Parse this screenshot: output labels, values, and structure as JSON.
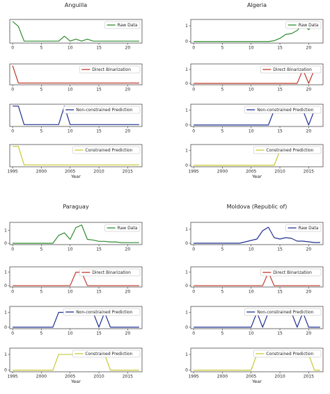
{
  "chart_data": [
    {
      "type": "line",
      "title": "Anguilla",
      "panels": [
        {
          "legend": "Raw Data",
          "color": "#2e8b2e",
          "x": [
            0,
            1,
            2,
            3,
            4,
            5,
            6,
            7,
            8,
            9,
            10,
            11,
            12,
            13,
            14,
            15,
            16,
            17,
            18,
            19,
            20,
            21,
            22
          ],
          "y": [
            1.0,
            0.75,
            0.0,
            0.0,
            0.0,
            0.0,
            0.0,
            0.0,
            0.0,
            0.25,
            0.0,
            0.1,
            0.0,
            0.1,
            0.0,
            0.0,
            0.0,
            0.0,
            0.0,
            0.0,
            0.0,
            0.0,
            0.0
          ],
          "xticks": [
            0,
            5,
            10,
            15,
            20
          ],
          "yticks": [],
          "xlim": [
            -0.5,
            22.5
          ],
          "ylim": [
            -0.1,
            1.1
          ]
        },
        {
          "legend": "Direct Binarization",
          "color": "#c0392b",
          "x": [
            0,
            1,
            2,
            3,
            4,
            5,
            6,
            7,
            8,
            9,
            10,
            11,
            12,
            13,
            14,
            15,
            16,
            17,
            18,
            19,
            20,
            21,
            22
          ],
          "y": [
            1,
            0,
            0,
            0,
            0,
            0,
            0,
            0,
            0,
            0,
            0,
            0,
            0,
            0,
            0,
            0,
            0,
            0,
            0,
            0,
            0,
            0,
            0
          ],
          "xticks": [
            0,
            5,
            10,
            15,
            20
          ],
          "yticks": [],
          "xlim": [
            -0.5,
            22.5
          ],
          "ylim": [
            -0.1,
            1.1
          ]
        },
        {
          "legend": "Non-constrained Prediction",
          "color": "#1f2f8f",
          "x": [
            0,
            1,
            2,
            3,
            4,
            5,
            6,
            7,
            8,
            9,
            10,
            11,
            12,
            13,
            14,
            15,
            16,
            17,
            18,
            19,
            20,
            21,
            22
          ],
          "y": [
            1,
            1,
            0,
            0,
            0,
            0,
            0,
            0,
            0,
            1,
            0,
            0,
            0,
            0,
            0,
            0,
            0,
            0,
            0,
            0,
            0,
            0,
            0
          ],
          "xticks": [
            0,
            5,
            10,
            15,
            20
          ],
          "yticks": [],
          "xlim": [
            -0.5,
            22.5
          ],
          "ylim": [
            -0.1,
            1.1
          ]
        },
        {
          "legend": "Constrained Prediction",
          "color": "#c8c832",
          "x": [
            1995,
            1996,
            1997,
            1998,
            1999,
            2000,
            2001,
            2002,
            2003,
            2004,
            2005,
            2006,
            2007,
            2008,
            2009,
            2010,
            2011,
            2012,
            2013,
            2014,
            2015,
            2016,
            2017
          ],
          "y": [
            1,
            1,
            0,
            0,
            0,
            0,
            0,
            0,
            0,
            0,
            0,
            0,
            0,
            0,
            0,
            0,
            0,
            0,
            0,
            0,
            0,
            0,
            0
          ],
          "xticks": [
            1995,
            2000,
            2005,
            2010,
            2015
          ],
          "yticks": [],
          "xlim": [
            1994.5,
            2017.5
          ],
          "ylim": [
            -0.1,
            1.1
          ],
          "xlabel": "Year"
        }
      ]
    },
    {
      "type": "line",
      "title": "Algeria",
      "panels": [
        {
          "legend": "Raw Data",
          "color": "#2e8b2e",
          "x": [
            0,
            1,
            2,
            3,
            4,
            5,
            6,
            7,
            8,
            9,
            10,
            11,
            12,
            13,
            14,
            15,
            16,
            17,
            18,
            19,
            20,
            21,
            22
          ],
          "y": [
            0,
            0,
            0,
            0,
            0,
            0,
            0,
            0,
            0,
            0,
            0,
            0,
            0,
            0,
            0.05,
            0.2,
            0.45,
            0.5,
            0.7,
            1.1,
            0.75,
            1.2,
            0.95
          ],
          "xticks": [
            0,
            5,
            10,
            15,
            20
          ],
          "yticks": [
            0,
            1
          ],
          "xlim": [
            -0.5,
            22.5
          ],
          "ylim": [
            -0.1,
            1.4
          ]
        },
        {
          "legend": "Direct Binarization",
          "color": "#c0392b",
          "x": [
            0,
            1,
            2,
            3,
            4,
            5,
            6,
            7,
            8,
            9,
            10,
            11,
            12,
            13,
            14,
            15,
            16,
            17,
            18,
            19,
            20,
            21,
            22
          ],
          "y": [
            0,
            0,
            0,
            0,
            0,
            0,
            0,
            0,
            0,
            0,
            0,
            0,
            0,
            0,
            0,
            0,
            0,
            0,
            0,
            1,
            0,
            1,
            1
          ],
          "xticks": [
            0,
            5,
            10,
            15,
            20
          ],
          "yticks": [
            0,
            1
          ],
          "xlim": [
            -0.5,
            22.5
          ],
          "ylim": [
            -0.1,
            1.4
          ]
        },
        {
          "legend": "Non-constrained Prediction",
          "color": "#1f2f8f",
          "x": [
            0,
            1,
            2,
            3,
            4,
            5,
            6,
            7,
            8,
            9,
            10,
            11,
            12,
            13,
            14,
            15,
            16,
            17,
            18,
            19,
            20,
            21,
            22
          ],
          "y": [
            0,
            0,
            0,
            0,
            0,
            0,
            0,
            0,
            0,
            0,
            0,
            0,
            0,
            0,
            1,
            1,
            1,
            1,
            1,
            1,
            0,
            1,
            1
          ],
          "xticks": [
            0,
            5,
            10,
            15,
            20
          ],
          "yticks": [
            0,
            1
          ],
          "xlim": [
            -0.5,
            22.5
          ],
          "ylim": [
            -0.1,
            1.4
          ]
        },
        {
          "legend": "Constrained Prediction",
          "color": "#c8c832",
          "x": [
            1995,
            1996,
            1997,
            1998,
            1999,
            2000,
            2001,
            2002,
            2003,
            2004,
            2005,
            2006,
            2007,
            2008,
            2009,
            2010,
            2011,
            2012,
            2013,
            2014,
            2015,
            2016,
            2017
          ],
          "y": [
            0,
            0,
            0,
            0,
            0,
            0,
            0,
            0,
            0,
            0,
            0,
            0,
            0,
            0,
            0,
            1,
            1,
            1,
            1,
            1,
            1,
            1,
            1
          ],
          "xticks": [
            1995,
            2000,
            2005,
            2010,
            2015
          ],
          "yticks": [
            0,
            1
          ],
          "xlim": [
            1994.5,
            2017.5
          ],
          "ylim": [
            -0.1,
            1.4
          ],
          "xlabel": "Year"
        }
      ]
    },
    {
      "type": "line",
      "title": "Paraguay",
      "panels": [
        {
          "legend": "Raw Data",
          "color": "#2e8b2e",
          "x": [
            0,
            1,
            2,
            3,
            4,
            5,
            6,
            7,
            8,
            9,
            10,
            11,
            12,
            13,
            14,
            15,
            16,
            17,
            18,
            19,
            20,
            21,
            22
          ],
          "y": [
            0,
            0,
            0,
            0,
            0,
            0,
            0,
            0,
            0.6,
            0.8,
            0.3,
            1.2,
            1.4,
            0.3,
            0.25,
            0.15,
            0.15,
            0.1,
            0.1,
            0.05,
            0.05,
            0.05,
            0.05
          ],
          "xticks": [
            0,
            5,
            10,
            15,
            20
          ],
          "yticks": [
            0,
            1
          ],
          "xlim": [
            -0.5,
            22.5
          ],
          "ylim": [
            -0.1,
            1.6
          ]
        },
        {
          "legend": "Direct Binarization",
          "color": "#c0392b",
          "x": [
            0,
            1,
            2,
            3,
            4,
            5,
            6,
            7,
            8,
            9,
            10,
            11,
            12,
            13,
            14,
            15,
            16,
            17,
            18,
            19,
            20,
            21,
            22
          ],
          "y": [
            0,
            0,
            0,
            0,
            0,
            0,
            0,
            0,
            0,
            0,
            0,
            1,
            1,
            0,
            0,
            0,
            0,
            0,
            0,
            0,
            0,
            0,
            0
          ],
          "xticks": [
            0,
            5,
            10,
            15,
            20
          ],
          "yticks": [
            0,
            1
          ],
          "xlim": [
            -0.5,
            22.5
          ],
          "ylim": [
            -0.1,
            1.4
          ]
        },
        {
          "legend": "Non-constrained Prediction",
          "color": "#1f2f8f",
          "x": [
            0,
            1,
            2,
            3,
            4,
            5,
            6,
            7,
            8,
            9,
            10,
            11,
            12,
            13,
            14,
            15,
            16,
            17,
            18,
            19,
            20,
            21,
            22
          ],
          "y": [
            0,
            0,
            0,
            0,
            0,
            0,
            0,
            0,
            1,
            1,
            1,
            1,
            1,
            1,
            1,
            0,
            1,
            0,
            0,
            0,
            0,
            0,
            0
          ],
          "xticks": [
            0,
            5,
            10,
            15,
            20
          ],
          "yticks": [
            0,
            1
          ],
          "xlim": [
            -0.5,
            22.5
          ],
          "ylim": [
            -0.1,
            1.4
          ]
        },
        {
          "legend": "Constrained Prediction",
          "color": "#c8c832",
          "x": [
            1995,
            1996,
            1997,
            1998,
            1999,
            2000,
            2001,
            2002,
            2003,
            2004,
            2005,
            2006,
            2007,
            2008,
            2009,
            2010,
            2011,
            2012,
            2013,
            2014,
            2015,
            2016,
            2017
          ],
          "y": [
            0,
            0,
            0,
            0,
            0,
            0,
            0,
            0,
            1,
            1,
            1,
            1,
            1,
            1,
            1,
            1,
            1,
            0,
            0,
            0,
            0,
            0,
            0
          ],
          "xticks": [
            1995,
            2000,
            2005,
            2010,
            2015
          ],
          "yticks": [
            0,
            1
          ],
          "xlim": [
            1994.5,
            2017.5
          ],
          "ylim": [
            -0.1,
            1.4
          ],
          "xlabel": "Year"
        }
      ]
    },
    {
      "type": "line",
      "title": "Moldova (Republic of)",
      "panels": [
        {
          "legend": "Raw Data",
          "color": "#1f2f8f",
          "x": [
            0,
            1,
            2,
            3,
            4,
            5,
            6,
            7,
            8,
            9,
            10,
            11,
            12,
            13,
            14,
            15,
            16,
            17,
            18,
            19,
            20,
            21,
            22
          ],
          "y": [
            0,
            0,
            0,
            0,
            0,
            0,
            0,
            0,
            0,
            0.1,
            0.2,
            0.3,
            0.9,
            1.15,
            0.4,
            0.3,
            0.4,
            0.35,
            0.15,
            0.15,
            0.1,
            0.05,
            0.05
          ],
          "xticks": [
            0,
            5,
            10,
            15,
            20
          ],
          "yticks": [
            0,
            1
          ],
          "xlim": [
            -0.5,
            22.5
          ],
          "ylim": [
            -0.1,
            1.5
          ]
        },
        {
          "legend": "Direct Binarization",
          "color": "#c0392b",
          "x": [
            0,
            1,
            2,
            3,
            4,
            5,
            6,
            7,
            8,
            9,
            10,
            11,
            12,
            13,
            14,
            15,
            16,
            17,
            18,
            19,
            20,
            21,
            22
          ],
          "y": [
            0,
            0,
            0,
            0,
            0,
            0,
            0,
            0,
            0,
            0,
            0,
            0,
            0,
            1,
            0,
            0,
            0,
            0,
            0,
            0,
            0,
            0,
            0
          ],
          "xticks": [
            0,
            5,
            10,
            15,
            20
          ],
          "yticks": [
            0,
            1
          ],
          "xlim": [
            -0.5,
            22.5
          ],
          "ylim": [
            -0.1,
            1.4
          ]
        },
        {
          "legend": "Non-constrained Prediction",
          "color": "#1f2f8f",
          "x": [
            0,
            1,
            2,
            3,
            4,
            5,
            6,
            7,
            8,
            9,
            10,
            11,
            12,
            13,
            14,
            15,
            16,
            17,
            18,
            19,
            20,
            21,
            22
          ],
          "y": [
            0,
            0,
            0,
            0,
            0,
            0,
            0,
            0,
            0,
            0,
            0,
            1,
            0,
            1,
            1,
            1,
            1,
            1,
            0,
            1,
            0,
            0,
            0
          ],
          "xticks": [
            0,
            5,
            10,
            15,
            20
          ],
          "yticks": [
            0,
            1
          ],
          "xlim": [
            -0.5,
            22.5
          ],
          "ylim": [
            -0.1,
            1.4
          ]
        },
        {
          "legend": "Constrained Prediction",
          "color": "#c8c832",
          "x": [
            1995,
            1996,
            1997,
            1998,
            1999,
            2000,
            2001,
            2002,
            2003,
            2004,
            2005,
            2006,
            2007,
            2008,
            2009,
            2010,
            2011,
            2012,
            2013,
            2014,
            2015,
            2016,
            2017
          ],
          "y": [
            0,
            0,
            0,
            0,
            0,
            0,
            0,
            0,
            0,
            0,
            0,
            1,
            1,
            1,
            1,
            1,
            1,
            1,
            1,
            1,
            1,
            0,
            0
          ],
          "xticks": [
            1995,
            2000,
            2005,
            2010,
            2015
          ],
          "yticks": [
            0,
            1
          ],
          "xlim": [
            1994.5,
            2017.5
          ],
          "ylim": [
            -0.1,
            1.4
          ],
          "xlabel": "Year"
        }
      ]
    }
  ]
}
